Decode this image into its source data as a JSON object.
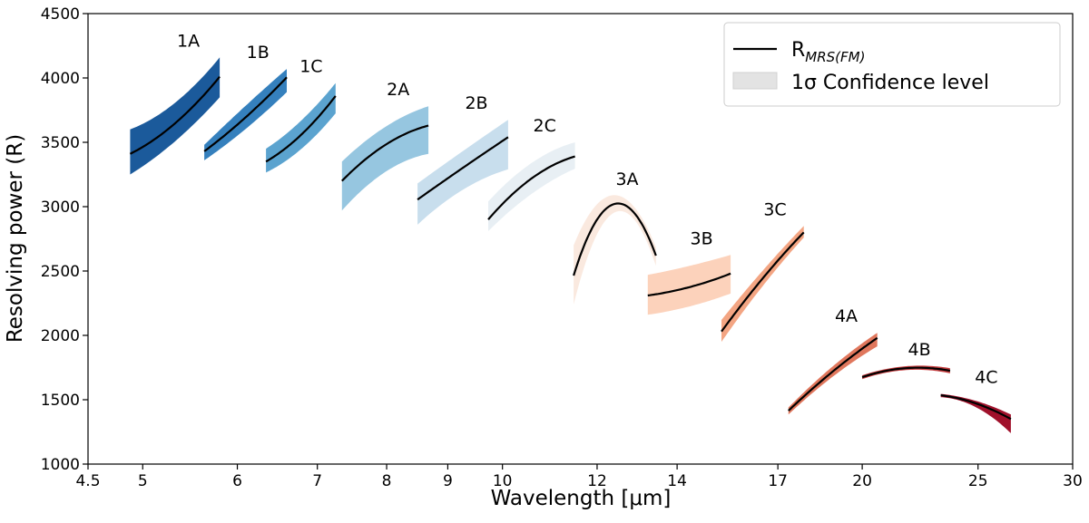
{
  "chart_data": {
    "type": "area",
    "title": "",
    "xlabel": "Wavelength [μm]",
    "ylabel": "Resolving power (R)",
    "xscale": "log",
    "xlim": [
      4.5,
      30
    ],
    "ylim": [
      1000,
      4500
    ],
    "xticks": [
      "4.5",
      "5",
      "6",
      "7",
      "8",
      "9",
      "10",
      "12",
      "14",
      "17",
      "20",
      "25",
      "30"
    ],
    "xtick_values": [
      4.5,
      5,
      6,
      7,
      8,
      9,
      10,
      12,
      14,
      17,
      20,
      25,
      30
    ],
    "yticks": [
      "1000",
      "1500",
      "2000",
      "2500",
      "3000",
      "3500",
      "4000",
      "4500"
    ],
    "ytick_values": [
      1000,
      1500,
      2000,
      2500,
      3000,
      3500,
      4000,
      4500
    ],
    "grid": false,
    "legend": {
      "placement": "top-right",
      "entries": [
        {
          "label_main": "R",
          "label_sub": "MRS(FM)",
          "kind": "line",
          "color": "#000000"
        },
        {
          "label": "1σ Confidence level",
          "kind": "band",
          "color": "#e3e3e3"
        }
      ]
    },
    "series": [
      {
        "name": "1A",
        "color": "#1b5a9b",
        "wavelength": [
          4.88,
          5.31,
          5.8
        ],
        "R": [
          3410,
          3640,
          4010
        ],
        "lower": [
          3250,
          3500,
          3850
        ],
        "upper": [
          3600,
          3800,
          4160
        ]
      },
      {
        "name": "1B",
        "color": "#3580bd",
        "wavelength": [
          5.63,
          6.09,
          6.6
        ],
        "R": [
          3430,
          3690,
          4005
        ],
        "lower": [
          3360,
          3600,
          3890
        ],
        "upper": [
          3480,
          3780,
          4070
        ]
      },
      {
        "name": "1C",
        "color": "#5ba3cf",
        "wavelength": [
          6.34,
          6.77,
          7.25
        ],
        "R": [
          3350,
          3550,
          3860
        ],
        "lower": [
          3265,
          3440,
          3725
        ],
        "upper": [
          3450,
          3660,
          3960
        ]
      },
      {
        "name": "2A",
        "color": "#96c6e0",
        "wavelength": [
          7.34,
          7.98,
          8.67
        ],
        "R": [
          3200,
          3480,
          3630
        ],
        "lower": [
          2970,
          3270,
          3410
        ],
        "upper": [
          3350,
          3620,
          3780
        ]
      },
      {
        "name": "2B",
        "color": "#c8deed",
        "wavelength": [
          8.49,
          9.26,
          10.11
        ],
        "R": [
          3055,
          3300,
          3540
        ],
        "lower": [
          2860,
          3130,
          3290
        ],
        "upper": [
          3180,
          3430,
          3675
        ]
      },
      {
        "name": "2C",
        "color": "#e8eff4",
        "wavelength": [
          9.73,
          10.58,
          11.5
        ],
        "R": [
          2900,
          3220,
          3390
        ],
        "lower": [
          2810,
          3100,
          3295
        ],
        "upper": [
          3040,
          3340,
          3500
        ]
      },
      {
        "name": "3A",
        "color": "#fae9df",
        "wavelength": [
          11.47,
          12.51,
          13.44
        ],
        "R": [
          2465,
          3025,
          2620
        ],
        "lower": [
          2240,
          2965,
          2540
        ],
        "upper": [
          2700,
          3085,
          2685
        ]
      },
      {
        "name": "3B",
        "color": "#fcd2bb",
        "wavelength": [
          13.23,
          14.34,
          15.52
        ],
        "R": [
          2310,
          2375,
          2480
        ],
        "lower": [
          2160,
          2225,
          2325
        ],
        "upper": [
          2470,
          2540,
          2625
        ]
      },
      {
        "name": "3C",
        "color": "#f3a583",
        "wavelength": [
          15.25,
          16.5,
          17.87
        ],
        "R": [
          2030,
          2440,
          2800
        ],
        "lower": [
          1950,
          2380,
          2760
        ],
        "upper": [
          2120,
          2500,
          2850
        ]
      },
      {
        "name": "4A",
        "color": "#e0775d",
        "wavelength": [
          17.35,
          18.9,
          20.59
        ],
        "R": [
          1415,
          1720,
          1980
        ],
        "lower": [
          1385,
          1680,
          1915
        ],
        "upper": [
          1440,
          1760,
          2020
        ]
      },
      {
        "name": "4B",
        "color": "#c43c3e",
        "wavelength": [
          20.0,
          21.74,
          23.69
        ],
        "R": [
          1675,
          1745,
          1725
        ],
        "lower": [
          1660,
          1730,
          1705
        ],
        "upper": [
          1690,
          1760,
          1745
        ]
      },
      {
        "name": "4C",
        "color": "#a0112b",
        "wavelength": [
          23.27,
          24.92,
          26.63
        ],
        "R": [
          1535,
          1470,
          1350
        ],
        "lower": [
          1520,
          1440,
          1240
        ],
        "upper": [
          1545,
          1490,
          1385
        ]
      }
    ]
  }
}
